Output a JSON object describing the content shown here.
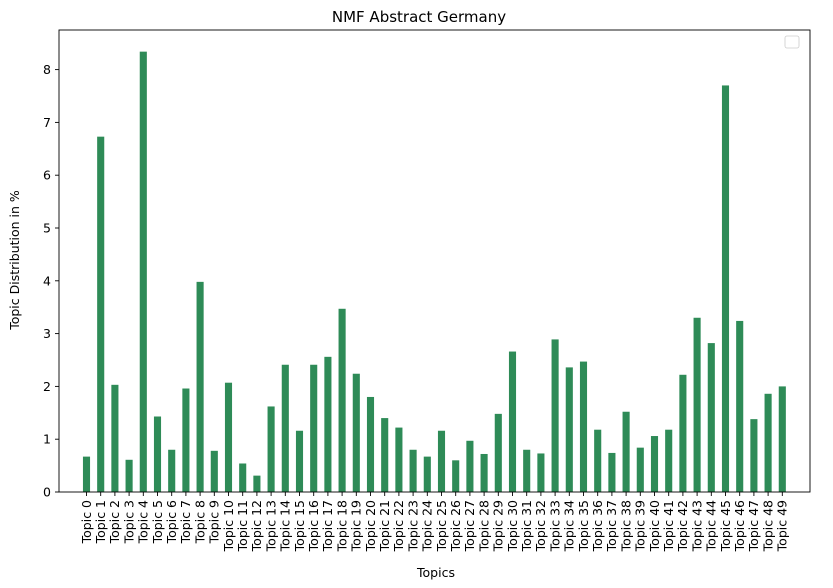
{
  "chart_data": {
    "type": "bar",
    "title": "NMF Abstract Germany",
    "xlabel": "Topics",
    "ylabel": "Topic Distribution in %",
    "ylim": [
      0,
      8.75
    ],
    "yticks": [
      0,
      1,
      2,
      3,
      4,
      5,
      6,
      7,
      8
    ],
    "grid": false,
    "legend": {
      "placement": "top-right",
      "entries": []
    },
    "bar_color": "#2e8b57",
    "categories": [
      "Topic 0",
      "Topic 1",
      "Topic 2",
      "Topic 3",
      "Topic 4",
      "Topic 5",
      "Topic 6",
      "Topic 7",
      "Topic 8",
      "Topic 9",
      "Topic 10",
      "Topic 11",
      "Topic 12",
      "Topic 13",
      "Topic 14",
      "Topic 15",
      "Topic 16",
      "Topic 17",
      "Topic 18",
      "Topic 19",
      "Topic 20",
      "Topic 21",
      "Topic 22",
      "Topic 23",
      "Topic 24",
      "Topic 25",
      "Topic 26",
      "Topic 27",
      "Topic 28",
      "Topic 29",
      "Topic 30",
      "Topic 31",
      "Topic 32",
      "Topic 33",
      "Topic 34",
      "Topic 35",
      "Topic 36",
      "Topic 37",
      "Topic 38",
      "Topic 39",
      "Topic 40",
      "Topic 41",
      "Topic 42",
      "Topic 43",
      "Topic 44",
      "Topic 45",
      "Topic 46",
      "Topic 47",
      "Topic 48",
      "Topic 49"
    ],
    "values": [
      0.67,
      6.73,
      2.03,
      0.61,
      8.34,
      1.43,
      0.8,
      1.96,
      3.98,
      0.78,
      2.07,
      0.54,
      0.31,
      1.62,
      2.41,
      1.16,
      2.41,
      2.56,
      3.47,
      2.24,
      1.8,
      1.4,
      1.22,
      0.8,
      0.67,
      1.16,
      0.6,
      0.97,
      0.72,
      1.48,
      2.66,
      0.8,
      0.73,
      2.89,
      2.36,
      2.47,
      1.18,
      0.74,
      1.52,
      0.84,
      1.06,
      1.18,
      2.22,
      3.3,
      2.82,
      7.7,
      3.24,
      1.38,
      1.86,
      2.0
    ]
  }
}
